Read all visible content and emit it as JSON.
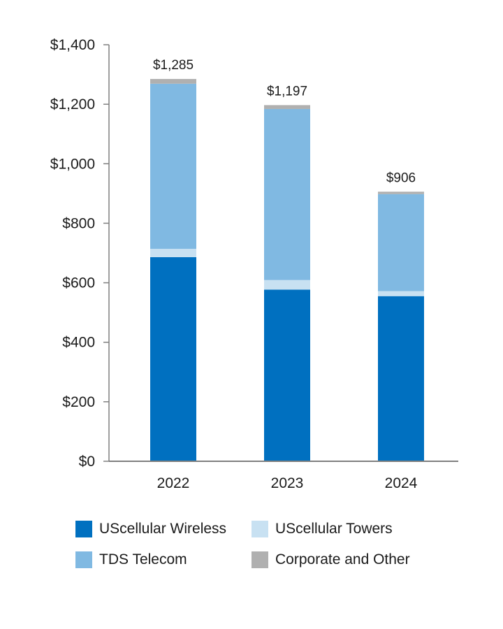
{
  "chart_data": {
    "type": "bar",
    "stacked": true,
    "title": "",
    "xlabel": "",
    "ylabel": "",
    "categories": [
      "2022",
      "2023",
      "2024"
    ],
    "ylim": [
      0,
      1400
    ],
    "yticks": [
      0,
      200,
      400,
      600,
      800,
      1000,
      1200,
      1400
    ],
    "ytick_labels": [
      "$0",
      "$200",
      "$400",
      "$600",
      "$800",
      "$1,000",
      "$1,200",
      "$1,400"
    ],
    "series": [
      {
        "name": "UScellular Wireless",
        "color": "#0070C0",
        "values": [
          686,
          577,
          555
        ]
      },
      {
        "name": "UScellular Towers",
        "color": "#C8E1F2",
        "values": [
          28,
          32,
          17
        ]
      },
      {
        "name": "TDS Telecom",
        "color": "#80B9E2",
        "values": [
          555,
          575,
          326
        ]
      },
      {
        "name": "Corporate and Other",
        "color": "#B0B0B0",
        "values": [
          16,
          13,
          8
        ]
      }
    ],
    "totals": [
      1285,
      1197,
      906
    ],
    "total_labels": [
      "$1,285",
      "$1,197",
      "$906"
    ],
    "legend_position": "bottom",
    "grid": false
  }
}
